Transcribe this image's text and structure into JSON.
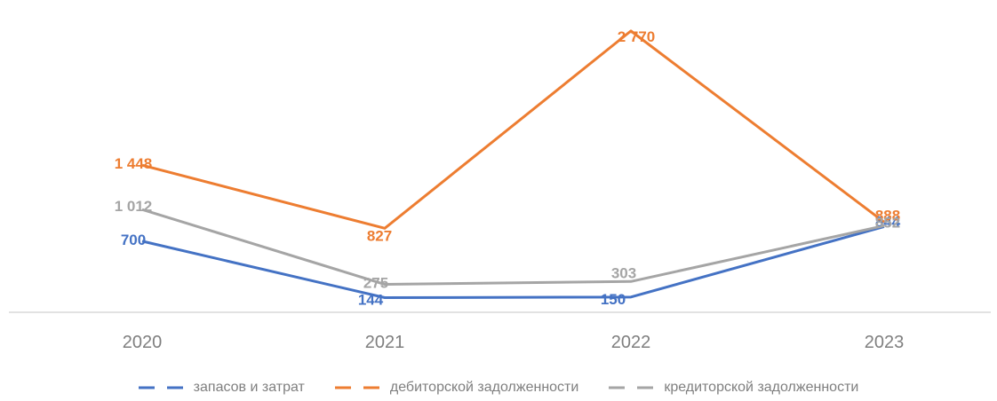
{
  "chart_data": {
    "type": "line",
    "categories": [
      "2020",
      "2021",
      "2022",
      "2023"
    ],
    "series": [
      {
        "name": "запасов и затрат",
        "values": [
          700,
          144,
          150,
          844
        ],
        "labels": [
          "700",
          "144",
          "150",
          "844"
        ],
        "color": "#4472c4"
      },
      {
        "name": "дебиторской задолженности",
        "values": [
          1448,
          827,
          2770,
          888
        ],
        "labels": [
          "1 448",
          "827",
          "2 770",
          "888"
        ],
        "color": "#ed7d31"
      },
      {
        "name": "кредиторской задолженности",
        "values": [
          1012,
          275,
          303,
          852
        ],
        "labels": [
          "1 012",
          "275",
          "303",
          "852"
        ],
        "color": "#a5a5a5"
      }
    ],
    "ylim": [
      0,
      2900
    ],
    "grid": false,
    "legend": "bottom"
  }
}
